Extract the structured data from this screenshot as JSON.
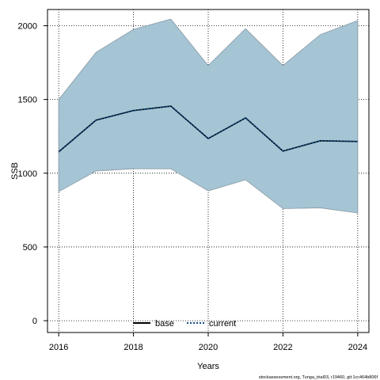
{
  "chart_data": {
    "type": "line",
    "title": "",
    "xlabel": "Years",
    "ylabel": "SSB",
    "x": [
      2016,
      2017,
      2018,
      2019,
      2020,
      2021,
      2022,
      2023,
      2024
    ],
    "xlim": [
      2015.7,
      2024.3
    ],
    "ylim": [
      -80,
      2110
    ],
    "x_ticks": [
      2016,
      2018,
      2020,
      2022,
      2024
    ],
    "y_ticks": [
      0,
      500,
      1000,
      1500,
      2000
    ],
    "grid": true,
    "grid_style": "dotted",
    "legend_placement": "bottom",
    "band": {
      "upper": [
        1500,
        1820,
        1975,
        2045,
        1730,
        1980,
        1730,
        1940,
        2035
      ],
      "lower": [
        875,
        1015,
        1030,
        1030,
        880,
        955,
        760,
        765,
        730
      ],
      "fill_color": "#a5c4d4",
      "edge_color": "#8a9aa4"
    },
    "series": [
      {
        "name": "base",
        "values": [
          1145,
          1360,
          1425,
          1455,
          1235,
          1375,
          1150,
          1220,
          1215
        ],
        "color": "#000000",
        "style": "solid"
      },
      {
        "name": "current",
        "values": [
          1145,
          1360,
          1425,
          1455,
          1235,
          1375,
          1150,
          1220,
          1215
        ],
        "color": "#104e8b",
        "style": "dotted"
      }
    ]
  },
  "footer": {
    "note": "stockassessment.org, Tunga_trial03, r19460, git:1cc464b806f"
  }
}
